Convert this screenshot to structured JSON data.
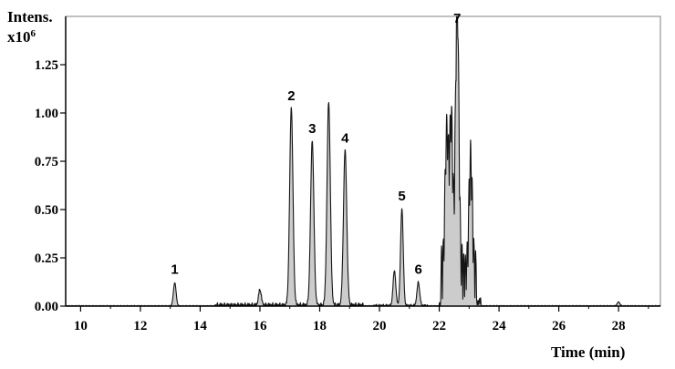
{
  "chart_data": {
    "type": "line",
    "ylabel_line1": "Intens.",
    "ylabel_line2_base": "x10",
    "ylabel_line2_exp": "6",
    "xlabel": "Time (min)",
    "xlim": [
      9.5,
      29.4
    ],
    "ylim": [
      0,
      1.5
    ],
    "x_ticks": [
      "10",
      "12",
      "14",
      "16",
      "18",
      "20",
      "22",
      "24",
      "26",
      "28"
    ],
    "y_ticks": [
      "0.00",
      "0.25",
      "0.50",
      "0.75",
      "1.00",
      "1.25"
    ],
    "legend": "none",
    "grid": false,
    "peaks": [
      {
        "label": "1",
        "x": 13.15,
        "y": 0.12
      },
      {
        "label": "2",
        "x": 17.05,
        "y": 1.02
      },
      {
        "label": "3",
        "x": 17.75,
        "y": 0.85
      },
      {
        "label": "4",
        "x": 18.85,
        "y": 0.8
      },
      {
        "label": "5",
        "x": 20.75,
        "y": 0.5
      },
      {
        "label": "6",
        "x": 21.3,
        "y": 0.12
      },
      {
        "label": "7",
        "x": 22.6,
        "y": 1.42
      }
    ],
    "unlabeled_peaks": [
      {
        "x": 18.3,
        "y": 1.05
      },
      {
        "x": 16.0,
        "y": 0.08
      },
      {
        "x": 20.5,
        "y": 0.18
      },
      {
        "x": 22.25,
        "y": 0.72
      },
      {
        "x": 22.4,
        "y": 0.78
      },
      {
        "x": 23.05,
        "y": 0.58
      },
      {
        "x": 28.0,
        "y": 0.02
      }
    ]
  }
}
